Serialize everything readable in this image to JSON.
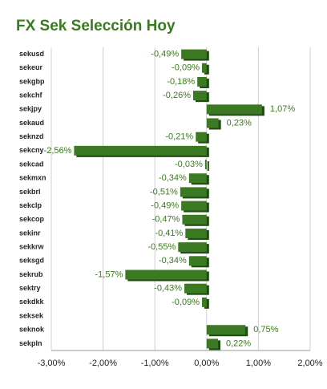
{
  "chart_data": {
    "type": "hbar",
    "title": "FX Sek Selección Hoy",
    "categories": [
      "sekusd",
      "sekeur",
      "sekgbp",
      "sekchf",
      "sekjpy",
      "sekaud",
      "seknzd",
      "sekcny",
      "sekcad",
      "sekmxn",
      "sekbrl",
      "sekclp",
      "sekcop",
      "sekinr",
      "sekkrw",
      "seksgd",
      "sekrub",
      "sektry",
      "sekdkk",
      "seksek",
      "seknok",
      "sekpln"
    ],
    "values": [
      -0.49,
      -0.09,
      -0.18,
      -0.26,
      1.07,
      0.23,
      -0.21,
      -2.56,
      -0.03,
      -0.34,
      -0.51,
      -0.49,
      -0.47,
      -0.41,
      -0.55,
      -0.34,
      -1.57,
      -0.43,
      -0.09,
      0,
      0.75,
      0.22
    ],
    "value_labels": [
      "-0,49%",
      "-0,09%",
      "-0,18%",
      "-0,26%",
      "1,07%",
      "0,23%",
      "-0,21%",
      "-2,56%",
      "-0,03%",
      "-0,34%",
      "-0,51%",
      "-0,49%",
      "-0,47%",
      "-0,41%",
      "-0,55%",
      "-0,34%",
      "-1,57%",
      "-0,43%",
      "-0,09%",
      null,
      "0,75%",
      "0,22%"
    ],
    "color": "#3b7a22",
    "xlim": [
      -3,
      2
    ],
    "xticks": [
      {
        "value": -3,
        "label": "-3,00%"
      },
      {
        "value": -2,
        "label": "-2,00%"
      },
      {
        "value": -1,
        "label": "-1,00%"
      },
      {
        "value": 0,
        "label": "0,00%"
      },
      {
        "value": 1,
        "label": "1,00%"
      },
      {
        "value": 2,
        "label": "2,00%"
      }
    ],
    "grid": true
  }
}
